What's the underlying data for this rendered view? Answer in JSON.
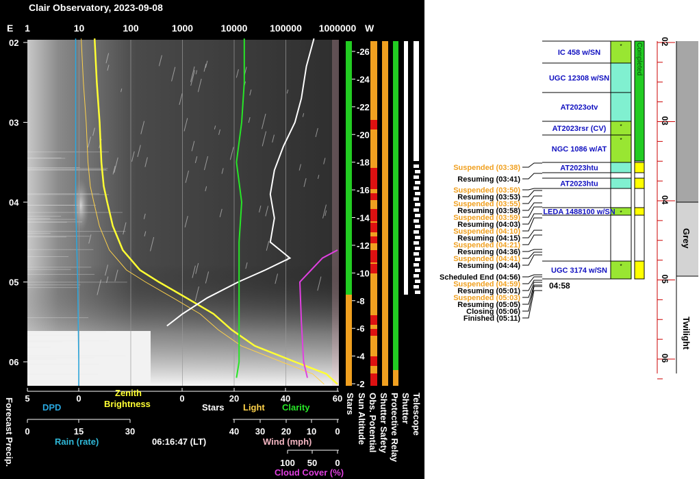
{
  "title": "Clair Observatory, 2023-09-08",
  "colors": {
    "dpd": "#29a8e0",
    "brightness": "#ffff33",
    "stars_light": "#ffd24a",
    "clarity": "#27e627",
    "wind": "#f4b6c2",
    "cloud": "#e040e0",
    "rain": "#2fb8d8",
    "green_bar": "#22cc22",
    "orange_bar": "#f0a020",
    "red_bar": "#dd1111",
    "target_green": "#99e632",
    "target_teal": "#80f0d0",
    "yellow_block": "#ffff00",
    "twilight_dark": "#a6a6a6",
    "grey_light": "#d3d3d3",
    "suspended": "#f0a020",
    "target_text": "#1010c0"
  },
  "top_axis": {
    "left_label": "E",
    "ticks": [
      "1",
      "10",
      "100",
      "1000",
      "10000",
      "100000",
      "1000000"
    ],
    "right_label": "W"
  },
  "time_ticks": [
    "02",
    "03",
    "04",
    "05",
    "06"
  ],
  "altitude_ticks": [
    "-26",
    "-24",
    "-22",
    "-20",
    "-18",
    "-16",
    "-14",
    "-12",
    "-10",
    "-8",
    "-6",
    "-4",
    "-2"
  ],
  "bottom_axes": {
    "row1": {
      "ticks": [
        "5",
        "0",
        "0",
        "20",
        "40",
        "60"
      ],
      "labels": {
        "dpd": "DPD",
        "zenith": "Zenith",
        "brightness": "Brightness",
        "stars": "Stars",
        "light": "Light",
        "clarity": "Clarity"
      }
    },
    "rain": {
      "ticks": [
        "0",
        "15",
        "30"
      ],
      "label": "Rain (rate)"
    },
    "clock": "06:16:47 (LT)",
    "wind": {
      "ticks": [
        "40",
        "30",
        "20",
        "10",
        "0"
      ],
      "label": "Wind (mph)"
    },
    "cloud": {
      "ticks": [
        "100",
        "50",
        "0"
      ],
      "label": "Cloud Cover (%)"
    }
  },
  "vertical_labels": {
    "forecast": "Forecast Precip.",
    "stars": "Stars",
    "sun_altitude": "Sun Altitude",
    "obs_potential": "Obs. Potential",
    "shutter_safety": "Shutter Safety",
    "protective_relay": "Protective Relay",
    "shutter": "Shutter",
    "telescope": "Telescope"
  },
  "targets": [
    {
      "label": "IC 458 w/SN",
      "mark": "*"
    },
    {
      "label": "UGC 12308 w/SN",
      "mark": ""
    },
    {
      "label": "AT2023otv",
      "mark": ""
    },
    {
      "label": "AT2023rsr (CV)",
      "mark": "*"
    },
    {
      "label": "NGC 1086 w/AT",
      "mark": "*"
    },
    {
      "label": "AT2023htu",
      "mark": ""
    },
    {
      "label": "AT2023htu",
      "mark": ""
    },
    {
      "label": "LEDA 1488100 w/SN",
      "mark": "*"
    },
    {
      "label": "UGC 3174 w/SN",
      "mark": "*"
    }
  ],
  "completed_label": "Completed",
  "end_marker": "04:58",
  "events": [
    {
      "text": "Suspended (03:38)",
      "kind": "suspended"
    },
    {
      "text": "Resuming (03:41)",
      "kind": "normal"
    },
    {
      "text": "Suspended (03:50)",
      "kind": "suspended"
    },
    {
      "text": "Resuming (03:53)",
      "kind": "normal"
    },
    {
      "text": "Suspended (03:55)",
      "kind": "suspended"
    },
    {
      "text": "Resuming (03:58)",
      "kind": "normal"
    },
    {
      "text": "Suspended (03:59)",
      "kind": "suspended"
    },
    {
      "text": "Resuming (04:03)",
      "kind": "normal"
    },
    {
      "text": "Suspended (04:10)",
      "kind": "suspended"
    },
    {
      "text": "Resuming (04:15)",
      "kind": "normal"
    },
    {
      "text": "Suspended (04:21)",
      "kind": "suspended"
    },
    {
      "text": "Resuming (04:36)",
      "kind": "normal"
    },
    {
      "text": "Suspended (04:41)",
      "kind": "suspended"
    },
    {
      "text": "Resuming (04:44)",
      "kind": "normal"
    },
    {
      "text": "Scheduled End (04:56)",
      "kind": "normal"
    },
    {
      "text": "Suspended (04:59)",
      "kind": "suspended"
    },
    {
      "text": "Resuming (05:01)",
      "kind": "normal"
    },
    {
      "text": "Suspended (05:03)",
      "kind": "suspended"
    },
    {
      "text": "Resuming (05:05)",
      "kind": "normal"
    },
    {
      "text": "Closing (05:06)",
      "kind": "normal"
    },
    {
      "text": "Finished (05:11)",
      "kind": "normal"
    }
  ],
  "twilight_labels": {
    "grey": "Grey",
    "twilight": "Twilight"
  },
  "chart_data": {
    "type": "line",
    "title": "Clair Observatory, 2023-09-08",
    "time_axis": {
      "ticks": [
        "02",
        "03",
        "04",
        "05",
        "06"
      ],
      "range": [
        "01:55",
        "06:17"
      ]
    },
    "series": [
      {
        "name": "Zenith Brightness",
        "axis": "log scale 1 to 1000000",
        "points": [
          [
            1.95,
            20
          ],
          [
            2.5,
            22
          ],
          [
            3.0,
            25
          ],
          [
            3.5,
            27
          ],
          [
            3.8,
            30
          ],
          [
            4.0,
            35
          ],
          [
            4.3,
            45
          ],
          [
            4.6,
            70
          ],
          [
            4.85,
            150
          ],
          [
            5.0,
            350
          ],
          [
            5.2,
            1200
          ],
          [
            5.4,
            4000
          ],
          [
            5.6,
            9000
          ],
          [
            5.8,
            25000
          ],
          [
            6.0,
            150000
          ],
          [
            6.15,
            600000
          ],
          [
            6.28,
            1000000
          ]
        ]
      },
      {
        "name": "Stars",
        "axis": "log scale 1 to 1000000",
        "points": [
          [
            1.95,
            350000
          ],
          [
            2.3,
            250000
          ],
          [
            2.7,
            200000
          ],
          [
            3.0,
            150000
          ],
          [
            3.3,
            90000
          ],
          [
            3.6,
            60000
          ],
          [
            3.9,
            50000
          ],
          [
            4.2,
            60000
          ],
          [
            4.5,
            50000
          ],
          [
            4.7,
            120000
          ],
          [
            4.85,
            40000
          ],
          [
            5.0,
            12000
          ],
          [
            5.2,
            3000
          ],
          [
            5.4,
            1000
          ],
          [
            5.55,
            500
          ]
        ]
      },
      {
        "name": "Clarity",
        "axis": "0 to 60",
        "points": [
          [
            1.95,
            24
          ],
          [
            2.5,
            24
          ],
          [
            3.0,
            23
          ],
          [
            3.5,
            21
          ],
          [
            4.0,
            23
          ],
          [
            4.5,
            22
          ],
          [
            5.0,
            22
          ],
          [
            5.5,
            22
          ],
          [
            6.0,
            22
          ],
          [
            6.2,
            21
          ]
        ]
      },
      {
        "name": "Cloud Cover (%)",
        "axis": "100 to 0",
        "points": [
          [
            4.6,
            0
          ],
          [
            4.7,
            20
          ],
          [
            4.85,
            35
          ],
          [
            5.0,
            50
          ],
          [
            5.5,
            48
          ],
          [
            6.0,
            45
          ],
          [
            6.2,
            40
          ]
        ]
      },
      {
        "name": "DPD",
        "axis": "5 to 0",
        "points": [
          [
            1.95,
            0.3
          ],
          [
            3.0,
            0.3
          ],
          [
            4.0,
            0.3
          ],
          [
            5.0,
            0.1
          ],
          [
            6.0,
            0.0
          ],
          [
            6.3,
            0.0
          ]
        ]
      }
    ],
    "sun_altitude": {
      "range": [
        -26,
        -2
      ]
    }
  }
}
